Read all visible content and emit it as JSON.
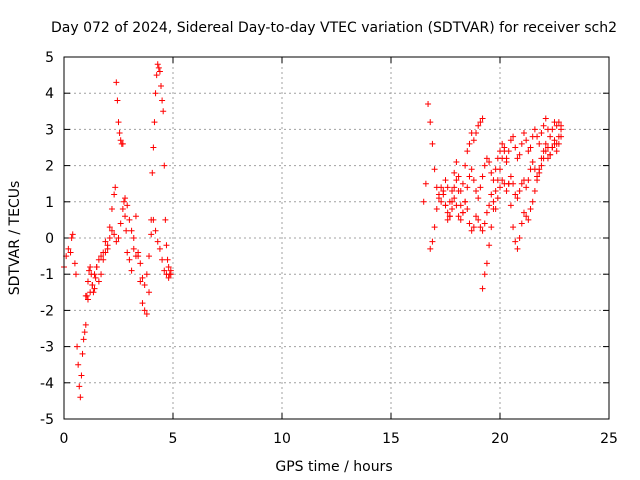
{
  "chart_data": {
    "type": "scatter",
    "title": "Day 072 of 2024, Sidereal Day-to-day VTEC variation (SDTVAR) for receiver sch2",
    "xlabel": "GPS time / hours",
    "ylabel": "SDTVAR / TECUs",
    "xlim": [
      0,
      25
    ],
    "ylim": [
      -5,
      5
    ],
    "x_ticks": [
      0,
      5,
      10,
      15,
      20,
      25
    ],
    "y_ticks": [
      -5,
      -4,
      -3,
      -2,
      -1,
      0,
      1,
      2,
      3,
      4,
      5
    ],
    "grid": true,
    "marker": "+",
    "series_color": "#ff0000",
    "series": [
      {
        "x": [
          0.0,
          0.1,
          0.2,
          0.3,
          0.35,
          0.4,
          0.5,
          0.55,
          0.6,
          0.65,
          0.7,
          0.75,
          0.8,
          0.85,
          0.9,
          0.95,
          1.0,
          1.05,
          1.1,
          1.15,
          1.2,
          1.25,
          1.3,
          1.35,
          1.4,
          1.45,
          1.5,
          1.6,
          1.7,
          1.8,
          1.9,
          2.0,
          2.1,
          2.2,
          2.3,
          2.35,
          2.4,
          2.45,
          2.5,
          2.55,
          2.6,
          2.65,
          2.7,
          2.75,
          2.8,
          2.85,
          2.9,
          3.0,
          3.1,
          3.2,
          3.3,
          3.4,
          3.5,
          3.6,
          3.7,
          3.8,
          3.9,
          4.0,
          4.05,
          4.1,
          4.15,
          4.2,
          4.25,
          4.3,
          4.35,
          4.4,
          4.45,
          4.5,
          4.55,
          4.6,
          4.65,
          4.7,
          4.75,
          4.8,
          4.85,
          4.9
        ],
        "y": [
          -0.8,
          -0.5,
          -0.3,
          -0.4,
          0.0,
          0.1,
          -0.7,
          -1.0,
          -3.0,
          -3.5,
          -4.1,
          -4.4,
          -3.8,
          -3.2,
          -2.8,
          -2.6,
          -2.4,
          -1.6,
          -1.2,
          -0.9,
          -0.8,
          -1.0,
          -1.3,
          -1.5,
          -1.4,
          -1.1,
          -0.8,
          -1.2,
          -1.0,
          -0.6,
          -0.1,
          -0.3,
          0.3,
          0.8,
          1.2,
          1.4,
          4.3,
          3.8,
          3.2,
          2.9,
          2.7,
          2.6,
          2.6,
          1.0,
          0.6,
          0.2,
          -0.4,
          -0.6,
          -0.9,
          0.0,
          0.6,
          -0.5,
          -1.2,
          -1.8,
          -2.0,
          -2.1,
          -1.5,
          0.5,
          1.8,
          2.5,
          3.2,
          4.0,
          4.5,
          4.8,
          4.7,
          4.6,
          4.2,
          3.8,
          3.5,
          2.0,
          0.5,
          -0.2,
          -0.6,
          -0.8,
          -1.0,
          -0.9
        ]
      },
      {
        "x": [
          1.0,
          1.1,
          1.2,
          1.3,
          1.4,
          1.5,
          1.6,
          1.7,
          1.8,
          1.9,
          2.0,
          2.1,
          2.2,
          2.3,
          2.4,
          2.5,
          2.6,
          2.7,
          2.8,
          2.9,
          3.0,
          3.1,
          3.2,
          3.3,
          3.4,
          3.5,
          3.6,
          3.7,
          3.8,
          3.9,
          4.0,
          4.1,
          4.2,
          4.3,
          4.4,
          4.5,
          4.6,
          4.7,
          4.8,
          4.9
        ],
        "y": [
          -1.6,
          -1.7,
          -1.5,
          -1.3,
          -1.0,
          -0.8,
          -0.6,
          -0.5,
          -0.4,
          -0.4,
          -0.2,
          0.0,
          0.2,
          0.1,
          -0.1,
          0.0,
          0.4,
          0.8,
          1.1,
          0.9,
          0.5,
          0.2,
          -0.3,
          -0.5,
          -0.4,
          -0.7,
          -1.1,
          -1.3,
          -1.0,
          -0.5,
          0.1,
          0.5,
          0.2,
          -0.1,
          -0.3,
          -0.6,
          -0.9,
          -1.0,
          -1.1,
          -1.0
        ]
      },
      {
        "x": [
          16.5,
          16.6,
          16.7,
          16.8,
          16.9,
          17.0,
          17.1,
          17.2,
          17.3,
          17.4,
          17.5,
          17.6,
          17.7,
          17.8,
          17.9,
          18.0,
          18.1,
          18.2,
          18.3,
          18.4,
          18.5,
          18.6,
          18.7,
          18.8,
          18.9,
          19.0,
          19.1,
          19.2
        ],
        "y": [
          1.0,
          1.5,
          3.7,
          3.2,
          2.6,
          1.9,
          1.4,
          1.1,
          1.0,
          1.2,
          1.6,
          1.4,
          1.0,
          1.3,
          1.8,
          2.1,
          1.7,
          1.3,
          1.5,
          2.0,
          2.4,
          2.6,
          2.9,
          2.7,
          2.9,
          3.1,
          3.2,
          3.3
        ]
      },
      {
        "x": [
          16.8,
          16.9,
          17.0,
          17.1,
          17.2,
          17.3,
          17.4,
          17.5,
          17.6,
          17.7,
          17.8,
          17.9,
          18.0,
          18.1,
          18.2,
          18.3,
          18.4,
          18.5,
          18.6,
          18.7,
          18.8,
          18.9,
          19.0,
          19.1,
          19.2,
          19.3,
          19.4,
          19.5,
          19.6,
          19.7,
          19.8,
          19.9,
          20.0,
          20.1,
          20.2,
          20.3,
          20.4,
          20.5,
          20.6,
          20.7,
          20.8,
          20.9,
          21.0,
          21.1,
          21.2,
          21.3,
          21.4,
          21.5,
          21.6,
          21.7,
          21.8,
          21.9,
          22.0,
          22.1,
          22.2,
          22.3,
          22.4,
          22.5,
          22.6,
          22.7,
          22.8
        ],
        "y": [
          -0.3,
          -0.1,
          0.3,
          0.8,
          1.2,
          1.4,
          1.3,
          0.9,
          0.5,
          0.6,
          1.0,
          1.4,
          1.6,
          1.3,
          0.9,
          0.7,
          1.0,
          1.4,
          1.7,
          1.9,
          1.6,
          1.3,
          1.1,
          1.4,
          1.7,
          2.0,
          2.2,
          2.1,
          1.8,
          1.6,
          1.9,
          2.2,
          2.4,
          2.6,
          2.5,
          2.2,
          2.4,
          2.7,
          2.8,
          2.5,
          2.2,
          2.3,
          2.6,
          2.9,
          2.7,
          2.4,
          2.5,
          2.8,
          3.0,
          2.8,
          2.6,
          2.9,
          3.1,
          3.3,
          3.0,
          2.8,
          3.0,
          3.2,
          3.1,
          3.2,
          3.1
        ]
      },
      {
        "x": [
          17.5,
          17.6,
          17.7,
          17.8,
          17.9,
          18.0,
          18.1,
          18.2,
          18.3,
          18.4,
          18.5,
          18.6,
          18.7,
          18.8,
          18.9,
          19.0,
          19.1,
          19.2,
          19.3,
          19.4,
          19.5,
          19.6,
          19.7,
          19.8,
          19.9,
          20.0,
          20.1,
          20.2,
          20.3,
          20.4,
          20.5,
          20.6,
          20.7,
          20.8,
          20.9,
          21.0,
          21.1,
          21.2,
          21.3,
          21.4,
          21.5,
          21.6,
          21.7,
          21.8,
          21.9,
          22.0,
          22.1,
          22.2,
          22.3,
          22.4,
          22.5,
          22.6,
          22.7,
          22.8
        ],
        "y": [
          0.9,
          0.7,
          0.6,
          0.8,
          1.1,
          0.9,
          0.6,
          0.5,
          0.7,
          1.0,
          0.8,
          0.4,
          0.2,
          0.3,
          0.6,
          0.5,
          0.3,
          0.2,
          0.4,
          0.7,
          0.9,
          1.2,
          1.0,
          0.8,
          1.1,
          1.4,
          1.6,
          1.5,
          1.3,
          1.5,
          1.7,
          1.5,
          1.2,
          1.1,
          1.3,
          1.5,
          1.6,
          1.4,
          1.6,
          1.9,
          2.1,
          1.9,
          1.7,
          1.8,
          2.0,
          2.2,
          2.4,
          2.2,
          2.3,
          2.5,
          2.6,
          2.4,
          2.6,
          2.8
        ]
      },
      {
        "x": [
          19.2,
          19.3,
          19.4,
          19.5,
          19.6,
          19.7,
          19.8,
          19.9,
          20.0,
          20.1,
          20.2,
          20.3,
          20.4,
          20.5,
          20.6,
          20.7,
          20.8,
          20.9,
          21.0,
          21.1,
          21.2,
          21.3,
          21.4,
          21.5,
          21.6,
          21.7,
          21.8,
          21.9,
          22.0,
          22.1,
          22.2,
          22.3,
          22.4,
          22.5,
          22.6,
          22.7,
          22.8
        ],
        "y": [
          -1.4,
          -1.0,
          -0.7,
          -0.2,
          0.3,
          0.8,
          1.3,
          1.6,
          1.9,
          2.2,
          2.4,
          2.1,
          1.5,
          0.9,
          0.3,
          -0.1,
          -0.3,
          0.0,
          0.4,
          0.7,
          0.6,
          0.5,
          0.8,
          1.0,
          1.3,
          1.6,
          1.9,
          2.2,
          2.4,
          2.6,
          2.5,
          2.3,
          2.5,
          2.7,
          2.6,
          2.8,
          3.0
        ]
      }
    ]
  }
}
